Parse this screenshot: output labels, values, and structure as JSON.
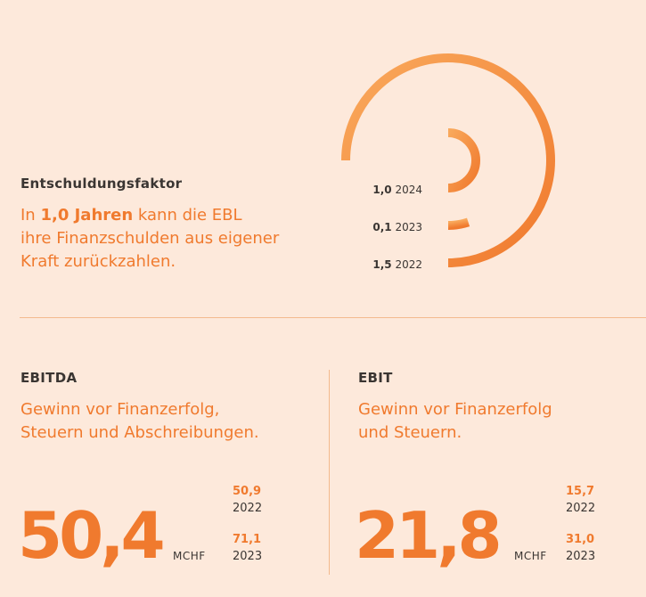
{
  "entschuldung": {
    "title": "Entschuldungsfaktor",
    "lead_pre": "In ",
    "lead_bold": "1,0 Jahren",
    "lead_post": " kann die EBL",
    "lead_line2": "ihre Finanzschulden aus eigener",
    "lead_line3": "Kraft zurückzahlen."
  },
  "chart_data": {
    "type": "radial-bar",
    "title": "Entschuldungsfaktor",
    "series": [
      {
        "year": "2024",
        "value": 1.0,
        "value_label": "1,0"
      },
      {
        "year": "2023",
        "value": 0.1,
        "value_label": "0,1"
      },
      {
        "year": "2022",
        "value": 1.5,
        "value_label": "1,5"
      }
    ],
    "max": 2.0,
    "colors": {
      "start": "#f9a95c",
      "end": "#f07a2e"
    }
  },
  "ebitda": {
    "title": "EBITDA",
    "desc_line1": "Gewinn vor Finanzerfolg,",
    "desc_line2": "Steuern und Abschreibungen.",
    "value": "50,4",
    "unit": "MCHF",
    "prev": [
      {
        "value": "50,9",
        "year": "2022"
      },
      {
        "value": "71,1",
        "year": "2023"
      }
    ]
  },
  "ebit": {
    "title": "EBIT",
    "desc_line1": "Gewinn vor Finanzerfolg",
    "desc_line2": "und Steuern.",
    "value": "21,8",
    "unit": "MCHF",
    "prev": [
      {
        "value": "15,7",
        "year": "2022"
      },
      {
        "value": "31,0",
        "year": "2023"
      }
    ]
  },
  "colors": {
    "background": "#fde9db",
    "accent": "#f07a2e",
    "text": "#3a3532",
    "divider": "#f3b98e"
  }
}
